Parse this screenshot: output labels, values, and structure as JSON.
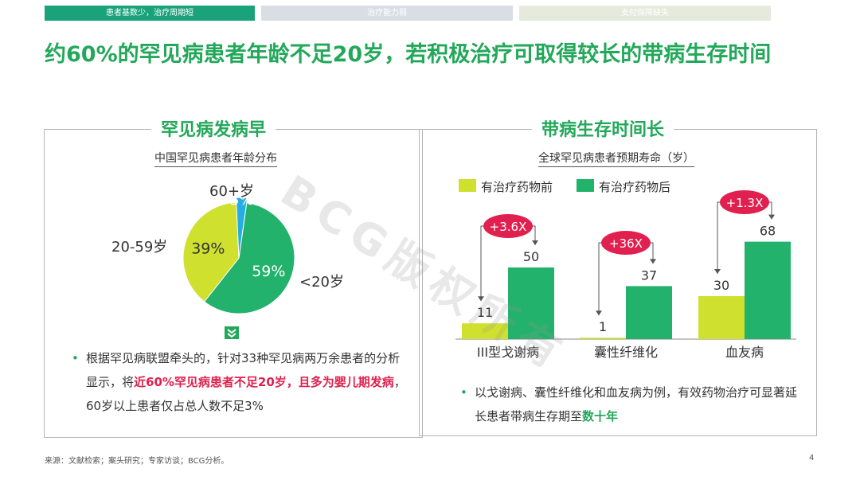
{
  "tabs": [
    {
      "label": "患者基数少，治疗周期短"
    },
    {
      "label": "治疗能力弱"
    },
    {
      "label": "支付保障缺失"
    }
  ],
  "title": "约60%的罕见病患者年龄不足20岁，若积极治疗可取得较长的带病生存时间",
  "left_panel": {
    "heading": "罕见病发病早",
    "chart_title": "中国罕见病患者年龄分布",
    "bullet": {
      "part1": "根据罕见病联盟牵头的，针对33种罕见病两万余患者的分析显示，将",
      "highlight": "近60%罕见病患者不足20岁，且多为婴儿期发病",
      "part2": "，60岁以上患者仅占总人数不足3%"
    }
  },
  "right_panel": {
    "heading": "带病生存时间长",
    "chart_title": "全球罕见病患者预期寿命（岁）",
    "bullet": {
      "part1": "以戈谢病、囊性纤维化和血友病为例，有效药物治疗可显著延长患者带病生存期至",
      "highlight": "数十年"
    }
  },
  "watermark": "BCG版权所有",
  "footer": "来源：文献检索；案头研究；专家访谈；BCG分析。",
  "page_number": "4",
  "chart_data": [
    {
      "type": "pie",
      "title": "中国罕见病患者年龄分布",
      "categories": [
        "<20岁",
        "20-59岁",
        "60+岁"
      ],
      "values": [
        59,
        39,
        3
      ],
      "value_labels": [
        "59%",
        "39%",
        "3%"
      ],
      "colors": [
        "#23b26b",
        "#cfe02f",
        "#27aee0"
      ]
    },
    {
      "type": "bar",
      "title": "全球罕见病患者预期寿命（岁）",
      "categories": [
        "III型戈谢病",
        "囊性纤维化",
        "血友病"
      ],
      "series": [
        {
          "name": "有治疗药物前",
          "values": [
            11,
            1,
            30
          ],
          "color": "#cfe02f"
        },
        {
          "name": "有治疗药物后",
          "values": [
            50,
            37,
            68
          ],
          "color": "#23b26b"
        }
      ],
      "value_labels_before": [
        "11",
        "1",
        "30"
      ],
      "value_labels_after": [
        "50",
        "37",
        "68"
      ],
      "multipliers": [
        "+3.6X",
        "+36X",
        "+1.3X"
      ],
      "multiplier_color": "#e0214f",
      "ylim": [
        0,
        70
      ]
    }
  ]
}
